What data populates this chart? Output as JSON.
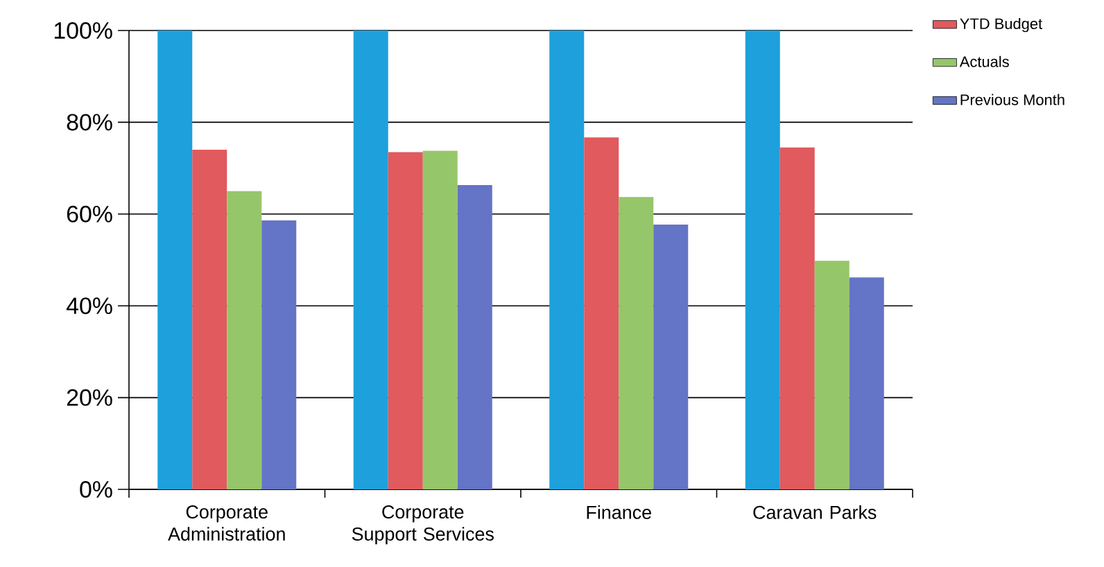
{
  "chart_data": {
    "type": "bar",
    "categories": [
      "Corporate Administration",
      "Corporate Support Services",
      "Finance",
      "Caravan Parks"
    ],
    "series": [
      {
        "color": "#1ea0dc",
        "values": [
          100,
          100,
          100,
          100
        ]
      },
      {
        "name": "YTD Budget",
        "color": "#e05a5e",
        "values": [
          74,
          73.5,
          76.7,
          74.5
        ]
      },
      {
        "name": "Actuals",
        "color": "#96c66a",
        "values": [
          65,
          73.8,
          63.7,
          49.8
        ]
      },
      {
        "name": "Previous Month",
        "color": "#6474c6",
        "values": [
          58.6,
          66.3,
          57.7,
          46.2
        ]
      }
    ],
    "ylim": [
      0,
      100
    ],
    "yticks": [
      {
        "value": 0,
        "label": "0%"
      },
      {
        "value": 20,
        "label": "20%"
      },
      {
        "value": 40,
        "label": "40%"
      },
      {
        "value": 60,
        "label": "60%"
      },
      {
        "value": 80,
        "label": "80%"
      },
      {
        "value": 100,
        "label": "100%"
      }
    ],
    "grid": "y",
    "legend": "top right"
  }
}
